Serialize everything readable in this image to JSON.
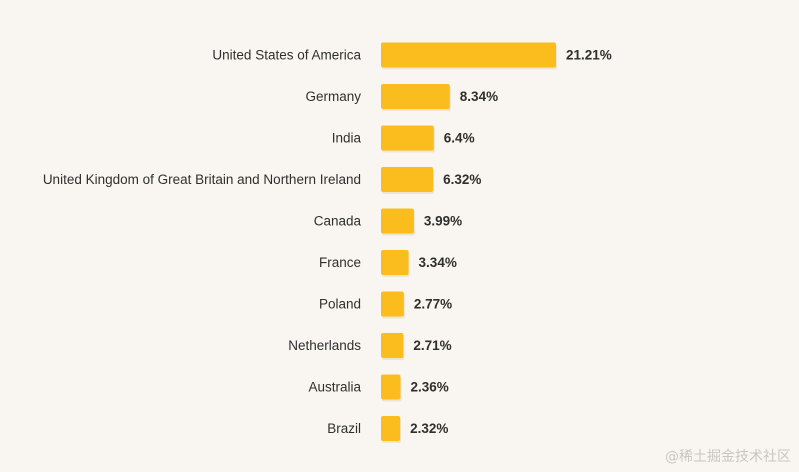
{
  "chart_data": {
    "type": "bar",
    "orientation": "horizontal",
    "categories": [
      "United States of America",
      "Germany",
      "India",
      "United Kingdom of Great Britain and Northern Ireland",
      "Canada",
      "France",
      "Poland",
      "Netherlands",
      "Australia",
      "Brazil"
    ],
    "values": [
      21.21,
      8.34,
      6.4,
      6.32,
      3.99,
      3.34,
      2.77,
      2.71,
      2.36,
      2.32
    ],
    "value_labels": [
      "21.21%",
      "8.34%",
      "6.4%",
      "6.32%",
      "3.99%",
      "3.34%",
      "2.77%",
      "2.71%",
      "2.36%",
      "2.32%"
    ],
    "title": "",
    "xlabel": "",
    "ylabel": "",
    "grid": false,
    "legend": "none",
    "bar_color": "#fbbd1e",
    "bar_shadow_color": "#ece4d4"
  },
  "watermark": "@稀土掘金技术社区"
}
